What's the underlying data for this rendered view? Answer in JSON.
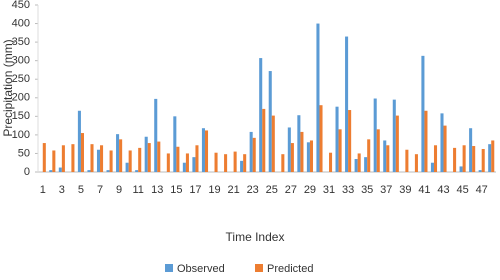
{
  "chart_data": {
    "type": "bar",
    "x_label": "Time Index",
    "y_label": "Precipitation (mm)",
    "categories": [
      "1",
      null,
      "3",
      null,
      "5",
      null,
      "7",
      null,
      "9",
      null,
      "11",
      null,
      "13",
      null,
      "15",
      null,
      "17",
      null,
      "19",
      null,
      "21",
      null,
      "23",
      null,
      "25",
      null,
      "27",
      null,
      "29",
      null,
      "31",
      null,
      "33",
      null,
      "35",
      null,
      "37",
      null,
      "39",
      null,
      "41",
      null,
      "43",
      null,
      "45",
      null,
      "47",
      null
    ],
    "series": [
      {
        "name": "Observed",
        "color": "#5b9bd5",
        "values": [
          0,
          5,
          12,
          0,
          165,
          5,
          60,
          5,
          102,
          25,
          5,
          95,
          197,
          0,
          150,
          25,
          40,
          118,
          0,
          0,
          0,
          30,
          108,
          307,
          272,
          0,
          120,
          153,
          80,
          400,
          0,
          176,
          365,
          35,
          40,
          198,
          85,
          195,
          0,
          0,
          313,
          25,
          158,
          0,
          15,
          118,
          5,
          75
        ]
      },
      {
        "name": "Predicted",
        "color": "#ed7d31",
        "values": [
          78,
          58,
          72,
          75,
          105,
          75,
          72,
          58,
          88,
          58,
          65,
          78,
          82,
          50,
          68,
          50,
          72,
          112,
          52,
          48,
          55,
          48,
          92,
          170,
          152,
          48,
          78,
          108,
          85,
          180,
          52,
          115,
          167,
          50,
          88,
          115,
          72,
          152,
          60,
          48,
          165,
          72,
          125,
          65,
          72,
          70,
          62,
          85
        ]
      }
    ],
    "ylim": [
      0,
      450
    ],
    "yticks": [
      0,
      50,
      100,
      150,
      200,
      250,
      300,
      350,
      400,
      450
    ],
    "grid": false,
    "legend": "bottom"
  }
}
